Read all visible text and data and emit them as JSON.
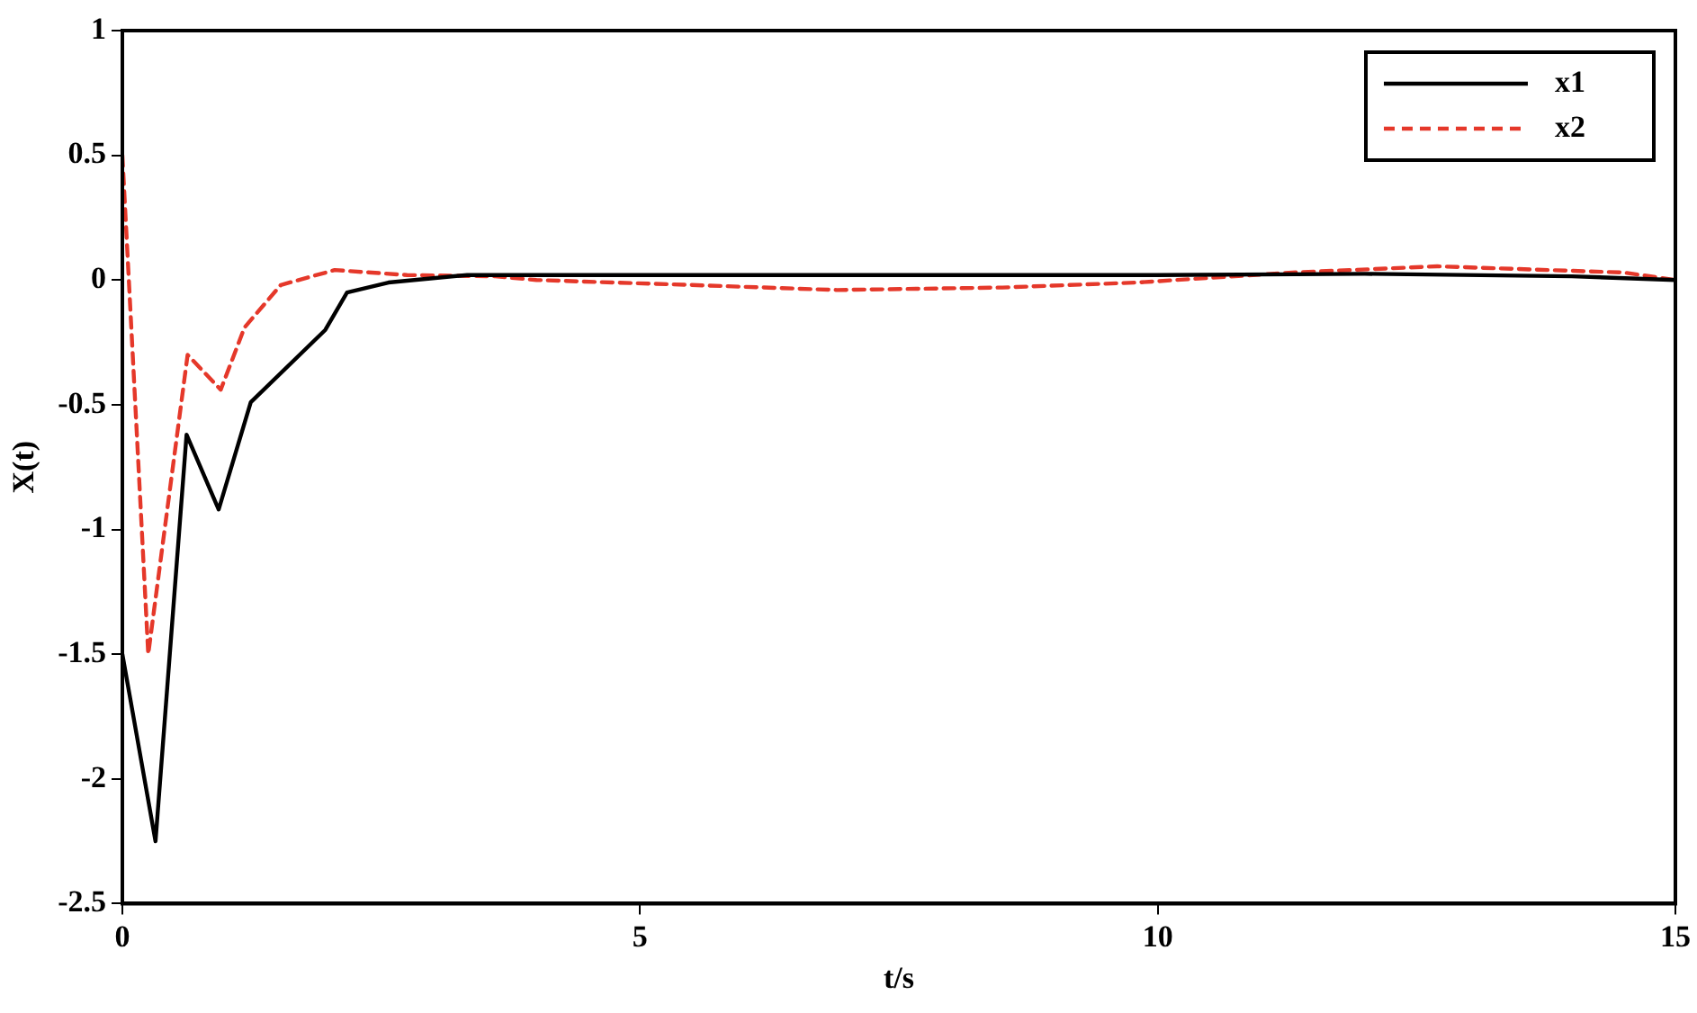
{
  "chart_data": {
    "type": "line",
    "xlabel": "t/s",
    "ylabel": "X(t)",
    "xlim": [
      0,
      15
    ],
    "xticks": [
      0,
      5,
      10,
      15
    ],
    "ylim": [
      -2.5,
      1
    ],
    "yticks": [
      1,
      0.5,
      0,
      -0.5,
      -1,
      -1.5,
      -2,
      -2.5
    ],
    "grid": false,
    "legend": "top right",
    "marker": "none",
    "series": [
      {
        "name": "x1",
        "color": "#000000",
        "line_style": "solid",
        "x": [
          0,
          0.32,
          0.62,
          0.93,
          1.24,
          1.96,
          2.17,
          2.57,
          3.33,
          5,
          8,
          10,
          12,
          14,
          15
        ],
        "values": [
          -1.5,
          -2.25,
          -0.62,
          -0.92,
          -0.49,
          -0.2,
          -0.05,
          -0.01,
          0.02,
          0.02,
          0.02,
          0.02,
          0.025,
          0.015,
          0
        ]
      },
      {
        "name": "x2",
        "color": "#e5382a",
        "line_style": "dashed",
        "x": [
          0,
          0.25,
          0.63,
          0.95,
          1.18,
          1.53,
          2.05,
          2.75,
          3.6,
          4,
          5.5,
          6.9,
          8.5,
          9.8,
          11.3,
          12.7,
          14.5,
          15
        ],
        "values": [
          0.5,
          -1.5,
          -0.3,
          -0.44,
          -0.19,
          -0.02,
          0.04,
          0.02,
          0.015,
          0,
          -0.02,
          -0.04,
          -0.03,
          -0.01,
          0.03,
          0.055,
          0.03,
          0
        ]
      }
    ]
  }
}
